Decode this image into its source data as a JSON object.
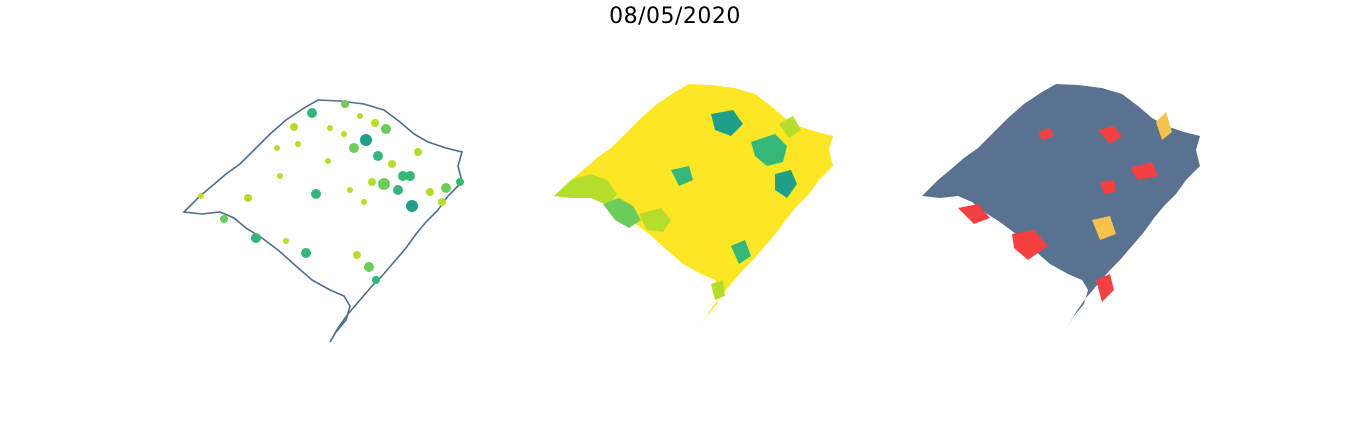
{
  "title": "08/05/2020",
  "panels": [
    {
      "name": "case-points",
      "style": "outline-with-circles"
    },
    {
      "name": "choropleth-viridis",
      "style": "filled-municipalities"
    },
    {
      "name": "alert-map",
      "style": "filled-categories"
    }
  ],
  "colors": {
    "outline": "#4f6d8c",
    "state_fill_panel3": "#58728f",
    "viridis_light": "#fde725",
    "viridis_yellowgreen": "#b5de2b",
    "viridis_green": "#6ccd5a",
    "viridis_mid": "#35b779",
    "viridis_teal": "#1f9e89",
    "alert_red": "#f44040",
    "alert_orange": "#f6c24e"
  }
}
